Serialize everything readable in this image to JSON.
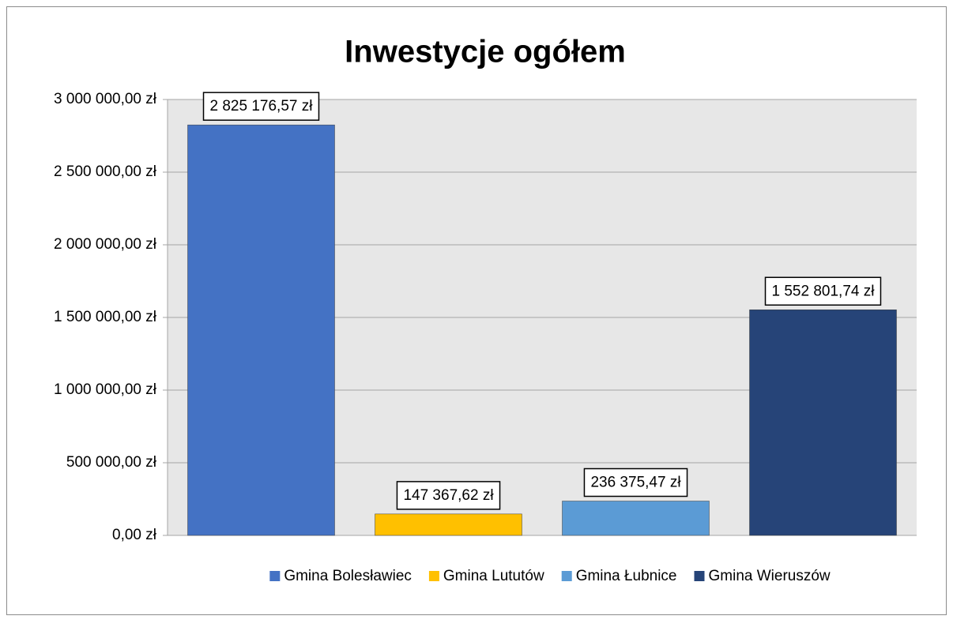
{
  "chart_data": {
    "type": "bar",
    "title": "Inwestycje ogółem",
    "categories": [
      "Gmina Bolesławiec",
      "Gmina Lututów",
      "Gmina Łubnice",
      "Gmina Wieruszów"
    ],
    "values": [
      2825176.57,
      147367.62,
      236375.47,
      1552801.74
    ],
    "value_labels": [
      "2 825 176,57 zł",
      "147 367,62 zł",
      "236 375,47 zł",
      "1 552 801,74 zł"
    ],
    "colors": [
      "#4472c4",
      "#ffc000",
      "#5b9bd5",
      "#264478"
    ],
    "ylim": [
      0,
      3000000
    ],
    "yticks": [
      {
        "value": 0,
        "label": "0,00 zł"
      },
      {
        "value": 500000,
        "label": "500 000,00 zł"
      },
      {
        "value": 1000000,
        "label": "1 000 000,00 zł"
      },
      {
        "value": 1500000,
        "label": "1 500 000,00 zł"
      },
      {
        "value": 2000000,
        "label": "2 000 000,00 zł"
      },
      {
        "value": 2500000,
        "label": "2 500 000,00 zł"
      },
      {
        "value": 3000000,
        "label": "3 000 000,00 zł"
      }
    ],
    "grid": true,
    "legend": "bottom"
  }
}
